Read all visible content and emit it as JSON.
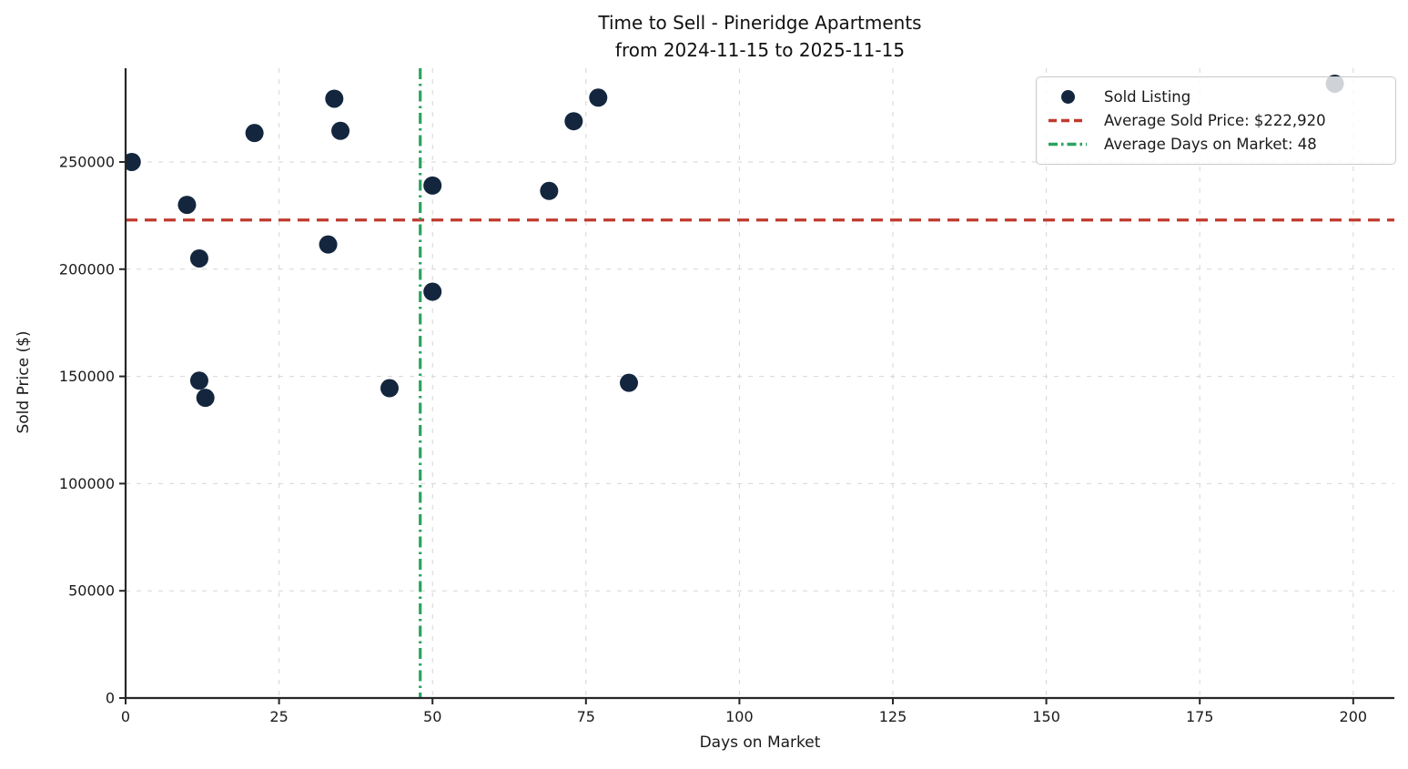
{
  "title": {
    "line1": "Time to Sell - Pineridge Apartments",
    "line2": "from 2024-11-15 to 2025-11-15"
  },
  "legend": {
    "items": [
      {
        "label": "Sold Listing",
        "marker": "dot"
      },
      {
        "label": "Average Sold Price: $222,920",
        "marker": "dashed-line"
      },
      {
        "label": "Average Days on Market: 48",
        "marker": "dashdot-line"
      }
    ]
  },
  "colors": {
    "point": "#13263e",
    "avg_price_line": "#c03a2e",
    "avg_days_line": "#2aa35f",
    "grid": "#d6d6d6",
    "axis": "#262626",
    "text": "#1a1a1a"
  },
  "chart_data": {
    "type": "scatter",
    "title": "Time to Sell - Pineridge Apartments\nfrom 2024-11-15 to 2025-11-15",
    "xlabel": "Days on Market",
    "ylabel": "Sold Price ($)",
    "xlim": [
      0,
      206.7
    ],
    "ylim": [
      0,
      293700
    ],
    "x_ticks": [
      0,
      25,
      50,
      75,
      100,
      125,
      150,
      175,
      200
    ],
    "y_ticks": [
      0,
      50000,
      100000,
      150000,
      200000,
      250000
    ],
    "grid": true,
    "legend_position": "upper right",
    "series": [
      {
        "name": "Sold Listing",
        "type": "scatter",
        "color": "#13263e",
        "points": [
          [
            1,
            250000
          ],
          [
            10,
            230000
          ],
          [
            12,
            205000
          ],
          [
            12,
            148000
          ],
          [
            13,
            140000
          ],
          [
            21,
            263500
          ],
          [
            33,
            211500
          ],
          [
            34,
            279500
          ],
          [
            35,
            264500
          ],
          [
            43,
            144500
          ],
          [
            50,
            239000
          ],
          [
            50,
            189500
          ],
          [
            69,
            236500
          ],
          [
            73,
            269000
          ],
          [
            77,
            280000
          ],
          [
            82,
            147000
          ],
          [
            197,
            286500
          ]
        ]
      },
      {
        "name": "Average Sold Price: $222,920",
        "type": "hline",
        "value": 222920,
        "color": "#c03a2e",
        "style": "dashed"
      },
      {
        "name": "Average Days on Market: 48",
        "type": "vline",
        "value": 48,
        "color": "#2aa35f",
        "style": "dashdot"
      }
    ]
  }
}
